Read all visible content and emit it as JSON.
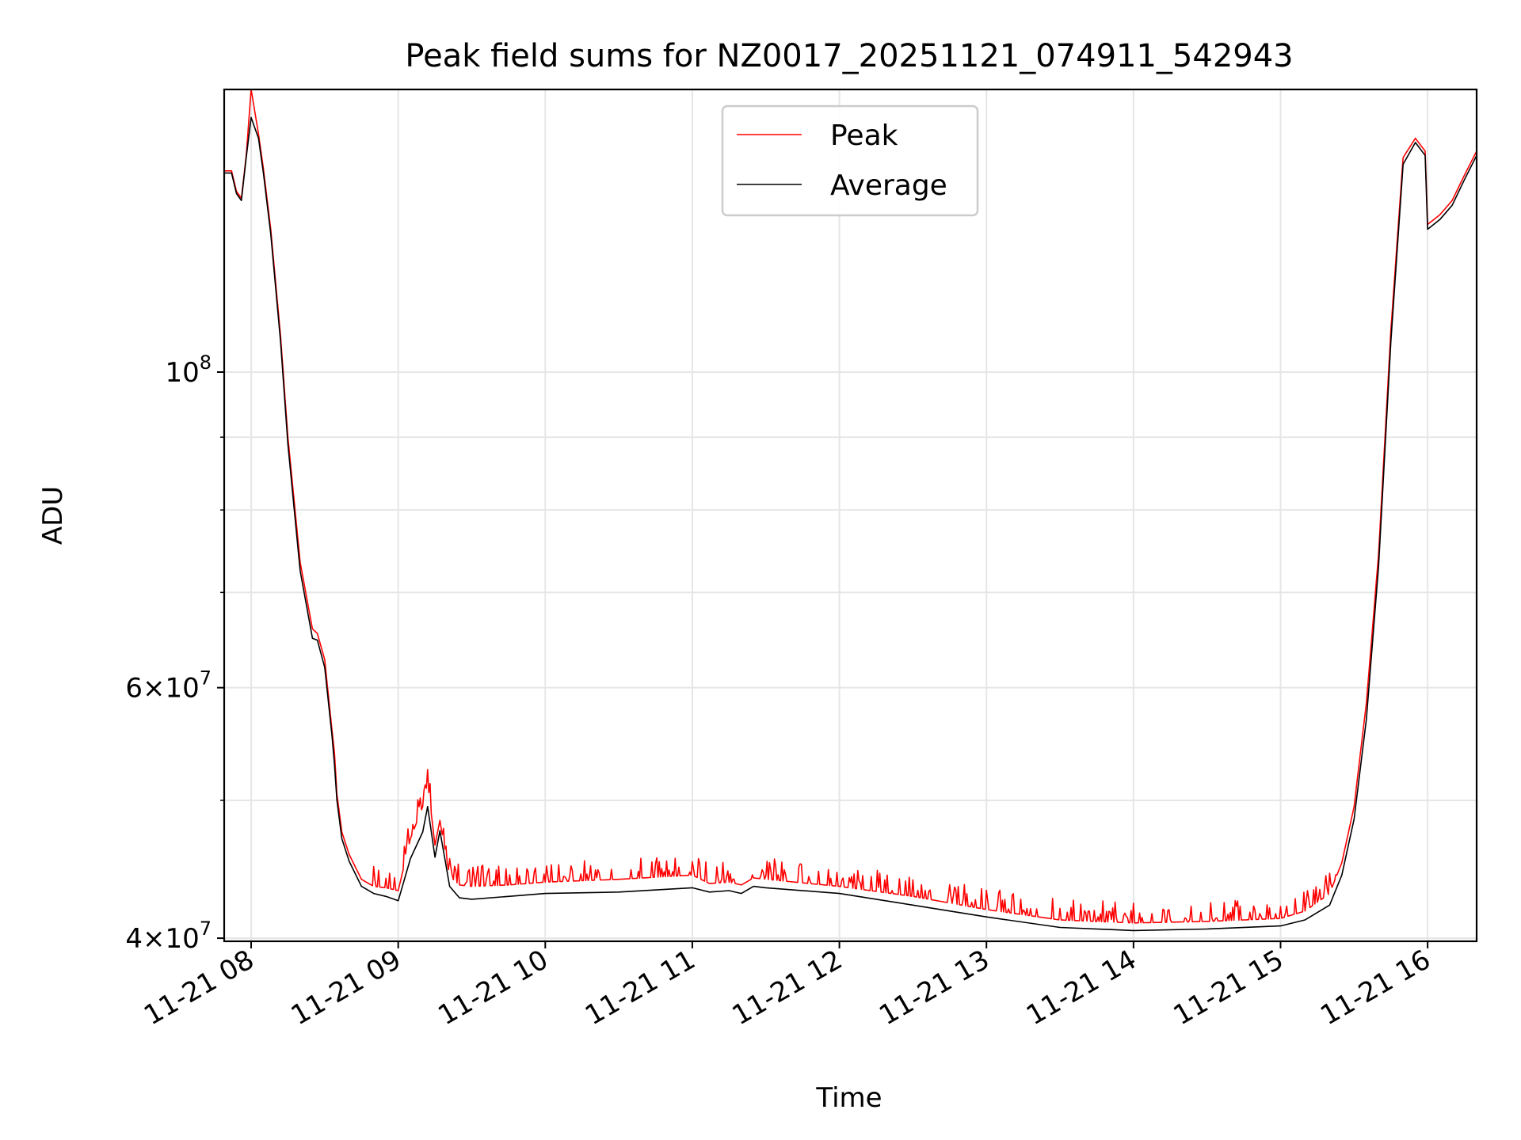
{
  "chart_data": {
    "type": "line",
    "title": "Peak field sums for NZ0017_20251121_074911_542943",
    "xlabel": "Time",
    "ylabel": "ADU",
    "y_scale": "log",
    "ylim": [
      39800000,
      158000000
    ],
    "xlim": [
      "2025-11-21 07:49",
      "2025-11-21 16:20"
    ],
    "grid": true,
    "legend_position": "upper center",
    "x_ticks": [
      {
        "value": "2025-11-21 08:00",
        "label": "11-21 08"
      },
      {
        "value": "2025-11-21 09:00",
        "label": "11-21 09"
      },
      {
        "value": "2025-11-21 10:00",
        "label": "11-21 10"
      },
      {
        "value": "2025-11-21 11:00",
        "label": "11-21 11"
      },
      {
        "value": "2025-11-21 12:00",
        "label": "11-21 12"
      },
      {
        "value": "2025-11-21 13:00",
        "label": "11-21 13"
      },
      {
        "value": "2025-11-21 14:00",
        "label": "11-21 14"
      },
      {
        "value": "2025-11-21 15:00",
        "label": "11-21 15"
      },
      {
        "value": "2025-11-21 16:00",
        "label": "11-21 16"
      }
    ],
    "y_ticks": [
      {
        "value": 40000000,
        "base": "4",
        "exp": "7"
      },
      {
        "value": 60000000,
        "base": "6",
        "exp": "7"
      },
      {
        "value": 100000000,
        "base": "",
        "exp": "8"
      }
    ],
    "y_minor_ticks": [
      50000000,
      70000000,
      80000000,
      90000000
    ],
    "series": [
      {
        "name": "Average",
        "color": "#000000",
        "x": [
          "2025-11-21 07:49",
          "2025-11-21 07:52",
          "2025-11-21 07:54",
          "2025-11-21 07:56",
          "2025-11-21 07:58",
          "2025-11-21 08:00",
          "2025-11-21 08:03",
          "2025-11-21 08:05",
          "2025-11-21 08:08",
          "2025-11-21 08:12",
          "2025-11-21 08:15",
          "2025-11-21 08:20",
          "2025-11-21 08:25",
          "2025-11-21 08:27",
          "2025-11-21 08:30",
          "2025-11-21 08:33",
          "2025-11-21 08:34",
          "2025-11-21 08:35",
          "2025-11-21 08:37",
          "2025-11-21 08:40",
          "2025-11-21 08:45",
          "2025-11-21 08:50",
          "2025-11-21 08:55",
          "2025-11-21 09:00",
          "2025-11-21 09:05",
          "2025-11-21 09:10",
          "2025-11-21 09:12",
          "2025-11-21 09:15",
          "2025-11-21 09:17",
          "2025-11-21 09:19",
          "2025-11-21 09:21",
          "2025-11-21 09:25",
          "2025-11-21 09:30",
          "2025-11-21 09:45",
          "2025-11-21 10:00",
          "2025-11-21 10:30",
          "2025-11-21 11:00",
          "2025-11-21 11:07",
          "2025-11-21 11:15",
          "2025-11-21 11:20",
          "2025-11-21 11:25",
          "2025-11-21 11:30",
          "2025-11-21 12:00",
          "2025-11-21 12:30",
          "2025-11-21 13:00",
          "2025-11-21 13:30",
          "2025-11-21 14:00",
          "2025-11-21 14:30",
          "2025-11-21 15:00",
          "2025-11-21 15:10",
          "2025-11-21 15:20",
          "2025-11-21 15:25",
          "2025-11-21 15:30",
          "2025-11-21 15:35",
          "2025-11-21 15:40",
          "2025-11-21 15:45",
          "2025-11-21 15:50",
          "2025-11-21 15:55",
          "2025-11-21 15:59",
          "2025-11-21 16:00",
          "2025-11-21 16:05",
          "2025-11-21 16:10",
          "2025-11-21 16:15",
          "2025-11-21 16:20"
        ],
        "values": [
          138000000,
          138000000,
          133500000,
          132000000,
          141500000,
          151000000,
          146000000,
          138000000,
          125000000,
          105000000,
          89000000,
          72500000,
          65000000,
          64800000,
          62000000,
          55500000,
          53000000,
          50000000,
          47000000,
          45300000,
          43500000,
          43000000,
          42800000,
          42500000,
          45500000,
          47500000,
          49500000,
          45600000,
          47600000,
          45500000,
          43500000,
          42700000,
          42600000,
          42800000,
          43000000,
          43100000,
          43400000,
          43100000,
          43200000,
          43000000,
          43500000,
          43400000,
          43000000,
          42200000,
          41400000,
          40700000,
          40500000,
          40600000,
          40800000,
          41200000,
          42200000,
          44300000,
          48500000,
          57000000,
          73000000,
          105000000,
          140000000,
          145000000,
          142000000,
          126000000,
          128000000,
          131000000,
          136500000,
          142000000
        ]
      },
      {
        "name": "Peak",
        "color": "#ff0000",
        "x": [
          "2025-11-21 07:49",
          "2025-11-21 07:52",
          "2025-11-21 07:54",
          "2025-11-21 07:56",
          "2025-11-21 07:58",
          "2025-11-21 08:00",
          "2025-11-21 08:03",
          "2025-11-21 08:05",
          "2025-11-21 08:08",
          "2025-11-21 08:12",
          "2025-11-21 08:15",
          "2025-11-21 08:20",
          "2025-11-21 08:25",
          "2025-11-21 08:27",
          "2025-11-21 08:30",
          "2025-11-21 08:33",
          "2025-11-21 08:34",
          "2025-11-21 08:35",
          "2025-11-21 08:37",
          "2025-11-21 08:40",
          "2025-11-21 08:45",
          "2025-11-21 08:50",
          "2025-11-21 08:55",
          "2025-11-21 09:00",
          "2025-11-21 09:05",
          "2025-11-21 09:10",
          "2025-11-21 09:12",
          "2025-11-21 09:15",
          "2025-11-21 09:17",
          "2025-11-21 09:19",
          "2025-11-21 09:21",
          "2025-11-21 09:25",
          "2025-11-21 09:30",
          "2025-11-21 09:45",
          "2025-11-21 10:00",
          "2025-11-21 10:30",
          "2025-11-21 11:00",
          "2025-11-21 11:07",
          "2025-11-21 11:15",
          "2025-11-21 11:20",
          "2025-11-21 11:25",
          "2025-11-21 11:30",
          "2025-11-21 12:00",
          "2025-11-21 12:30",
          "2025-11-21 13:00",
          "2025-11-21 13:30",
          "2025-11-21 14:00",
          "2025-11-21 14:30",
          "2025-11-21 15:00",
          "2025-11-21 15:10",
          "2025-11-21 15:20",
          "2025-11-21 15:25",
          "2025-11-21 15:30",
          "2025-11-21 15:35",
          "2025-11-21 15:40",
          "2025-11-21 15:45",
          "2025-11-21 15:50",
          "2025-11-21 15:55",
          "2025-11-21 15:59",
          "2025-11-21 16:00",
          "2025-11-21 16:05",
          "2025-11-21 16:10",
          "2025-11-21 16:15",
          "2025-11-21 16:20"
        ],
        "values": [
          138500000,
          138500000,
          134000000,
          132500000,
          142000000,
          158000000,
          147000000,
          139000000,
          126000000,
          106000000,
          90000000,
          73500000,
          66000000,
          65500000,
          62800000,
          56000000,
          54000000,
          50500000,
          47500000,
          45800000,
          44000000,
          43500000,
          43400000,
          43200000,
          47000000,
          49500000,
          51500000,
          46500000,
          48400000,
          46200000,
          44200000,
          43600000,
          43500000,
          43600000,
          43800000,
          44000000,
          44300000,
          43700000,
          43800000,
          43600000,
          44100000,
          44000000,
          43500000,
          42800000,
          41900000,
          41200000,
          41000000,
          41100000,
          41300000,
          41800000,
          43000000,
          45200000,
          49500000,
          58500000,
          74500000,
          107000000,
          141500000,
          146000000,
          143000000,
          127000000,
          129000000,
          132000000,
          137500000,
          143000000
        ],
        "spike_region": [
          "2025-11-21 08:50",
          "2025-11-21 15:25"
        ],
        "spike_height_range": [
          1.004,
          1.035
        ]
      }
    ]
  }
}
